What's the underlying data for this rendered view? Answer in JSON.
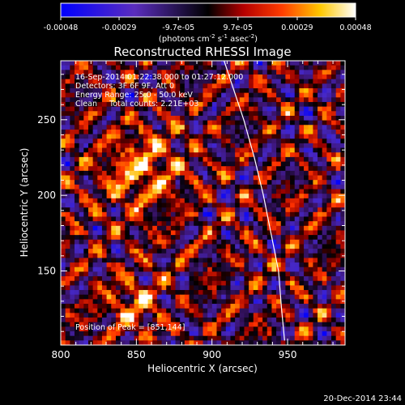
{
  "chart_data": {
    "type": "heatmap",
    "title": "Reconstructed RHESSI Image",
    "colorbar": {
      "ticks": [
        "-0.00048",
        "-0.00029",
        "-9.7e-05",
        "9.7e-05",
        "0.00029",
        "0.00048"
      ],
      "range": [
        -0.00048,
        0.00048
      ],
      "label_prefix": "(photons cm",
      "label_exp1": "-2",
      "label_mid": " s",
      "label_exp2": "-1",
      "label_mid2": " asec",
      "label_exp3": "-2",
      "label_suffix": ")"
    },
    "info_lines": [
      "16-Sep-2014 01:22:38.000 to 01:27:12.000",
      "Detectors: 3F 6F 9F, Att 0",
      "Energy Range: 25.0 - 50.0 keV",
      "Clean     Total counts: 2.21E+03"
    ],
    "peak_text": "Position of Peak = [851,144]",
    "xlabel": "Heliocentric X (arcsec)",
    "ylabel": "Heliocentric Y (arcsec)",
    "xlim": [
      800,
      988
    ],
    "ylim": [
      101,
      289
    ],
    "xticks": [
      "800",
      "850",
      "900",
      "950"
    ],
    "yticks": [
      "150",
      "200",
      "250"
    ],
    "limb_curve": [
      [
        908,
        289
      ],
      [
        913,
        274
      ],
      [
        921,
        250
      ],
      [
        928,
        225
      ],
      [
        934,
        200
      ],
      [
        939,
        175
      ],
      [
        944,
        150
      ],
      [
        946,
        125
      ],
      [
        948,
        104
      ]
    ],
    "grid": false
  },
  "footer": {
    "timestamp": "20-Dec-2014 23:44"
  }
}
